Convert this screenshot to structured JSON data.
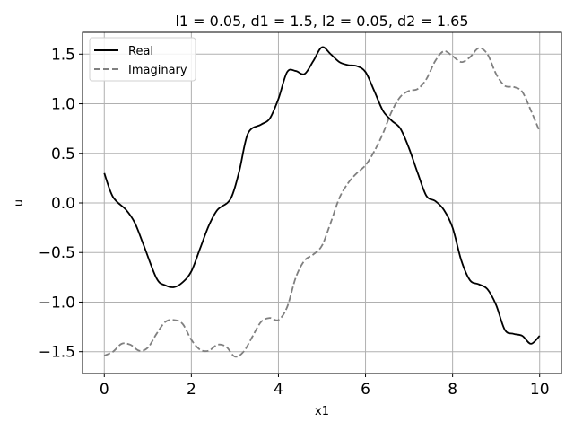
{
  "chart_data": {
    "type": "line",
    "title": "l1 = 0.05, d1 = 1.5, l2 = 0.05, d2 = 1.65",
    "xlabel": "x1",
    "ylabel": "u",
    "xlim": [
      -0.5,
      10.5
    ],
    "ylim": [
      -1.72,
      1.72
    ],
    "xticks": [
      0,
      2,
      4,
      6,
      8,
      10
    ],
    "xtick_labels": [
      "0",
      "2",
      "4",
      "6",
      "8",
      "10"
    ],
    "yticks": [
      -1.5,
      -1.0,
      -0.5,
      0.0,
      0.5,
      1.0,
      1.5
    ],
    "ytick_labels": [
      "−1.5",
      "−1.0",
      "−0.5",
      "0.0",
      "0.5",
      "1.0",
      "1.5"
    ],
    "grid": true,
    "legend_position": "top-left",
    "series": [
      {
        "name": "Real",
        "color": "#000000",
        "linestyle": "solid",
        "x": [
          0.0,
          0.2,
          0.5,
          0.7,
          0.9,
          1.2,
          1.4,
          1.6,
          1.8,
          2.0,
          2.2,
          2.4,
          2.6,
          2.9,
          3.1,
          3.3,
          3.6,
          3.8,
          4.0,
          4.2,
          4.4,
          4.6,
          4.8,
          5.0,
          5.2,
          5.4,
          5.6,
          5.8,
          6.0,
          6.2,
          6.4,
          6.6,
          6.8,
          7.0,
          7.2,
          7.4,
          7.6,
          7.8,
          8.0,
          8.2,
          8.4,
          8.6,
          8.8,
          9.0,
          9.2,
          9.4,
          9.6,
          9.8,
          10.0
        ],
        "y": [
          0.3,
          0.06,
          -0.07,
          -0.2,
          -0.42,
          -0.76,
          -0.83,
          -0.85,
          -0.8,
          -0.69,
          -0.46,
          -0.23,
          -0.07,
          0.04,
          0.32,
          0.7,
          0.79,
          0.85,
          1.05,
          1.32,
          1.33,
          1.3,
          1.43,
          1.57,
          1.5,
          1.42,
          1.39,
          1.38,
          1.32,
          1.13,
          0.93,
          0.83,
          0.75,
          0.55,
          0.3,
          0.07,
          0.02,
          -0.07,
          -0.25,
          -0.58,
          -0.78,
          -0.82,
          -0.87,
          -1.03,
          -1.28,
          -1.32,
          -1.34,
          -1.42,
          -1.34
        ]
      },
      {
        "name": "Imaginary",
        "color": "#808080",
        "linestyle": "dashed",
        "x": [
          0.0,
          0.2,
          0.4,
          0.6,
          0.8,
          1.0,
          1.2,
          1.4,
          1.6,
          1.8,
          2.0,
          2.2,
          2.4,
          2.6,
          2.8,
          3.0,
          3.2,
          3.4,
          3.6,
          3.8,
          4.0,
          4.2,
          4.4,
          4.6,
          4.8,
          5.0,
          5.2,
          5.4,
          5.6,
          5.8,
          6.0,
          6.2,
          6.4,
          6.6,
          6.8,
          7.0,
          7.2,
          7.4,
          7.6,
          7.8,
          8.0,
          8.2,
          8.4,
          8.6,
          8.8,
          9.0,
          9.2,
          9.4,
          9.6,
          9.8,
          10.0
        ],
        "y": [
          -1.54,
          -1.5,
          -1.42,
          -1.43,
          -1.49,
          -1.46,
          -1.32,
          -1.2,
          -1.18,
          -1.22,
          -1.38,
          -1.48,
          -1.49,
          -1.43,
          -1.45,
          -1.55,
          -1.5,
          -1.35,
          -1.2,
          -1.16,
          -1.18,
          -1.05,
          -0.75,
          -0.58,
          -0.52,
          -0.43,
          -0.2,
          0.05,
          0.2,
          0.3,
          0.38,
          0.52,
          0.7,
          0.92,
          1.07,
          1.13,
          1.15,
          1.25,
          1.43,
          1.53,
          1.48,
          1.42,
          1.47,
          1.56,
          1.5,
          1.3,
          1.18,
          1.17,
          1.12,
          0.93,
          0.72
        ]
      }
    ]
  }
}
